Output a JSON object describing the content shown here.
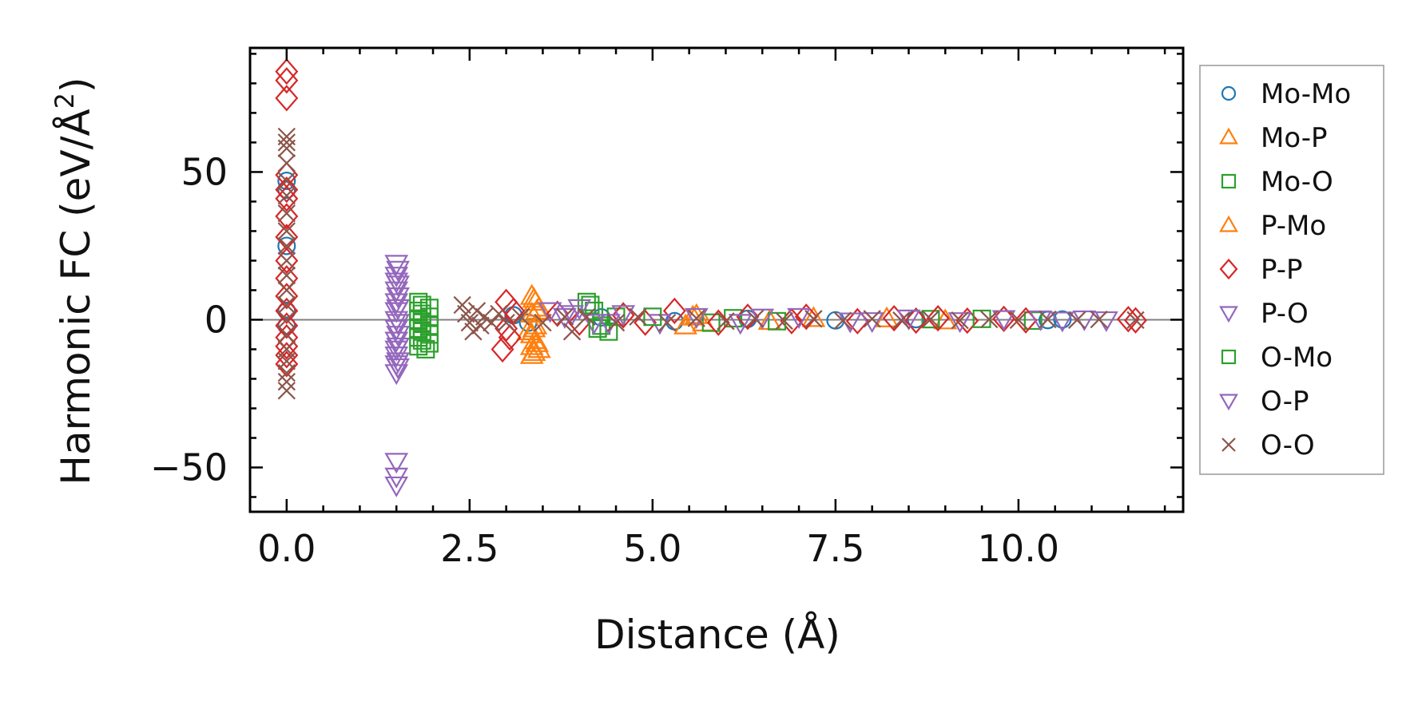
{
  "chart_data": {
    "type": "scatter",
    "xlabel": "Distance (Å)",
    "ylabel_main": "Harmonic FC (eV/Å",
    "ylabel_sup": "2",
    "ylabel_close": ")",
    "xlim": [
      -0.5,
      12.25
    ],
    "ylim": [
      -65,
      92
    ],
    "xticks": [
      0.0,
      2.5,
      5.0,
      7.5,
      10.0
    ],
    "xtick_labels": [
      "0.0",
      "2.5",
      "5.0",
      "7.5",
      "10.0"
    ],
    "yticks": [
      -50,
      0,
      50
    ],
    "ytick_labels": [
      "−50",
      "0",
      "50"
    ],
    "zero_line": true,
    "legend_position": "outside-right",
    "series": [
      {
        "name": "Mo-Mo",
        "marker": "circle",
        "color": "#1f77b4",
        "points": [
          [
            0.0,
            47
          ],
          [
            0.0,
            44
          ],
          [
            0.0,
            25
          ],
          [
            0.0,
            3
          ],
          [
            0.0,
            -2
          ],
          [
            3.1,
            1.5
          ],
          [
            3.3,
            -1
          ],
          [
            4.3,
            0.8
          ],
          [
            5.3,
            -0.5
          ],
          [
            6.3,
            0.3
          ],
          [
            7.5,
            -0.2
          ],
          [
            8.6,
            0.2
          ],
          [
            10.4,
            -0.1
          ],
          [
            10.6,
            0.1
          ]
        ]
      },
      {
        "name": "Mo-P",
        "marker": "triangle-up",
        "color": "#ff7f0e",
        "points": [
          [
            3.35,
            8
          ],
          [
            3.4,
            6
          ],
          [
            3.45,
            4
          ],
          [
            3.35,
            2
          ],
          [
            3.4,
            -2
          ],
          [
            3.35,
            -5
          ],
          [
            3.4,
            -7
          ],
          [
            3.35,
            -9
          ],
          [
            3.35,
            -12
          ],
          [
            3.45,
            -10
          ],
          [
            3.3,
            -4
          ],
          [
            5.6,
            1.5
          ],
          [
            5.7,
            -1
          ],
          [
            7.2,
            0.5
          ],
          [
            9.0,
            -0.3
          ]
        ]
      },
      {
        "name": "Mo-O",
        "marker": "square",
        "color": "#2ca02c",
        "points": [
          [
            1.8,
            6
          ],
          [
            1.8,
            3
          ],
          [
            1.8,
            0
          ],
          [
            1.8,
            -3
          ],
          [
            1.8,
            -6
          ],
          [
            1.8,
            -9
          ],
          [
            1.95,
            4
          ],
          [
            1.95,
            1
          ],
          [
            1.95,
            -2
          ],
          [
            1.95,
            -5
          ],
          [
            1.95,
            -8
          ],
          [
            4.1,
            6
          ],
          [
            4.2,
            3
          ],
          [
            4.3,
            -2
          ],
          [
            4.4,
            -4
          ],
          [
            4.5,
            1
          ],
          [
            5.8,
            -1
          ],
          [
            6.1,
            0.5
          ],
          [
            8.8,
            0.2
          ],
          [
            10.2,
            -0.3
          ]
        ]
      },
      {
        "name": "P-Mo",
        "marker": "triangle-up",
        "color": "#ff7f0e",
        "points": [
          [
            3.38,
            7
          ],
          [
            3.42,
            3
          ],
          [
            3.38,
            -3
          ],
          [
            3.42,
            -8
          ],
          [
            3.38,
            -11
          ],
          [
            5.45,
            -2
          ],
          [
            5.55,
            1
          ],
          [
            6.6,
            -0.5
          ],
          [
            8.2,
            0.4
          ]
        ]
      },
      {
        "name": "P-P",
        "marker": "diamond",
        "color": "#d62728",
        "points": [
          [
            0.0,
            84
          ],
          [
            0.0,
            81
          ],
          [
            0.0,
            75
          ],
          [
            0.0,
            49
          ],
          [
            0.0,
            44
          ],
          [
            0.0,
            41
          ],
          [
            0.0,
            35
          ],
          [
            0.0,
            28
          ],
          [
            0.0,
            20
          ],
          [
            0.0,
            14
          ],
          [
            0.0,
            8
          ],
          [
            0.0,
            3
          ],
          [
            0.0,
            -2
          ],
          [
            0.0,
            -6
          ],
          [
            0.0,
            -9
          ],
          [
            0.0,
            -12
          ],
          [
            0.0,
            -15
          ],
          [
            3.0,
            6
          ],
          [
            3.1,
            3
          ],
          [
            3.0,
            -3
          ],
          [
            3.05,
            -6
          ],
          [
            2.95,
            -10
          ],
          [
            3.7,
            2
          ],
          [
            4.0,
            -1
          ],
          [
            4.6,
            1.5
          ],
          [
            4.9,
            -1
          ],
          [
            5.3,
            3
          ],
          [
            5.9,
            -1
          ],
          [
            6.3,
            1
          ],
          [
            6.9,
            -0.5
          ],
          [
            7.1,
            1
          ],
          [
            7.8,
            -0.5
          ],
          [
            8.3,
            0.5
          ],
          [
            8.6,
            -0.3
          ],
          [
            8.9,
            0.5
          ],
          [
            9.3,
            -0.3
          ],
          [
            9.8,
            0.3
          ],
          [
            10.1,
            -0.2
          ],
          [
            11.5,
            0.2
          ],
          [
            11.6,
            -0.2
          ]
        ]
      },
      {
        "name": "P-O",
        "marker": "triangle-down",
        "color": "#9467bd",
        "points": [
          [
            1.5,
            19
          ],
          [
            1.5,
            15
          ],
          [
            1.5,
            13
          ],
          [
            1.5,
            10
          ],
          [
            1.5,
            6
          ],
          [
            1.5,
            3
          ],
          [
            1.5,
            0
          ],
          [
            1.5,
            -3
          ],
          [
            1.5,
            -7
          ],
          [
            1.5,
            -10
          ],
          [
            1.5,
            -12
          ],
          [
            1.5,
            -15
          ],
          [
            1.5,
            -18
          ],
          [
            1.5,
            -48
          ],
          [
            1.5,
            -53
          ],
          [
            1.5,
            -56
          ],
          [
            3.6,
            3
          ],
          [
            3.8,
            1
          ],
          [
            4.0,
            4
          ],
          [
            4.2,
            -1
          ],
          [
            4.6,
            2
          ],
          [
            5.1,
            -1
          ],
          [
            5.6,
            1
          ],
          [
            6.2,
            -1
          ],
          [
            7.0,
            1
          ],
          [
            7.7,
            -0.5
          ],
          [
            8.5,
            0.5
          ],
          [
            9.2,
            -0.4
          ],
          [
            9.8,
            0.3
          ],
          [
            10.6,
            -0.2
          ],
          [
            10.9,
            0.2
          ],
          [
            11.2,
            -0.1
          ]
        ]
      },
      {
        "name": "O-Mo",
        "marker": "square",
        "color": "#2ca02c",
        "points": [
          [
            1.85,
            5
          ],
          [
            1.85,
            2
          ],
          [
            1.85,
            -1
          ],
          [
            1.85,
            -4
          ],
          [
            1.85,
            -7
          ],
          [
            1.9,
            -10
          ],
          [
            4.15,
            5
          ],
          [
            4.25,
            -3
          ],
          [
            5.0,
            1
          ],
          [
            6.7,
            -0.5
          ],
          [
            9.5,
            0.3
          ]
        ]
      },
      {
        "name": "O-P",
        "marker": "triangle-down",
        "color": "#9467bd",
        "points": [
          [
            1.52,
            17
          ],
          [
            1.52,
            12
          ],
          [
            1.52,
            8
          ],
          [
            1.52,
            4
          ],
          [
            1.52,
            -1
          ],
          [
            1.52,
            -5
          ],
          [
            1.52,
            -9
          ],
          [
            1.52,
            -14
          ],
          [
            1.52,
            -16
          ],
          [
            3.9,
            2
          ],
          [
            4.4,
            -1
          ],
          [
            6.5,
            0.8
          ],
          [
            8.0,
            -0.4
          ],
          [
            10.3,
            0.2
          ]
        ]
      },
      {
        "name": "O-O",
        "marker": "x",
        "color": "#8c564b",
        "points": [
          [
            0.0,
            62
          ],
          [
            0.0,
            60
          ],
          [
            0.0,
            58
          ],
          [
            0.0,
            53
          ],
          [
            0.0,
            47
          ],
          [
            0.0,
            42
          ],
          [
            0.0,
            36
          ],
          [
            0.0,
            30
          ],
          [
            0.0,
            25
          ],
          [
            0.0,
            20
          ],
          [
            0.0,
            15
          ],
          [
            0.0,
            10
          ],
          [
            0.0,
            5
          ],
          [
            0.0,
            0
          ],
          [
            0.0,
            -5
          ],
          [
            0.0,
            -10
          ],
          [
            0.0,
            -14
          ],
          [
            0.0,
            -18
          ],
          [
            0.0,
            -21
          ],
          [
            0.0,
            -24
          ],
          [
            2.4,
            5
          ],
          [
            2.45,
            2
          ],
          [
            2.5,
            -1
          ],
          [
            2.55,
            -4
          ],
          [
            2.6,
            3
          ],
          [
            2.65,
            -2
          ],
          [
            2.7,
            1
          ],
          [
            2.8,
            -1
          ],
          [
            2.9,
            2
          ],
          [
            3.0,
            -1
          ],
          [
            3.2,
            1
          ],
          [
            3.5,
            -1
          ],
          [
            3.8,
            1
          ],
          [
            3.9,
            -4
          ],
          [
            4.1,
            1
          ],
          [
            4.5,
            -1
          ],
          [
            4.8,
            1
          ],
          [
            5.2,
            -1
          ],
          [
            5.6,
            0.5
          ],
          [
            6.0,
            -0.5
          ],
          [
            6.4,
            0.4
          ],
          [
            6.8,
            -0.4
          ],
          [
            7.2,
            0.3
          ],
          [
            7.6,
            -0.3
          ],
          [
            8.0,
            0.3
          ],
          [
            8.4,
            -0.2
          ],
          [
            8.8,
            0.2
          ],
          [
            9.2,
            -0.2
          ],
          [
            9.6,
            0.1
          ],
          [
            10.0,
            -0.1
          ],
          [
            10.4,
            0.1
          ],
          [
            10.8,
            -0.1
          ],
          [
            11.1,
            0.1
          ],
          [
            11.6,
            -0.1
          ]
        ]
      }
    ]
  }
}
